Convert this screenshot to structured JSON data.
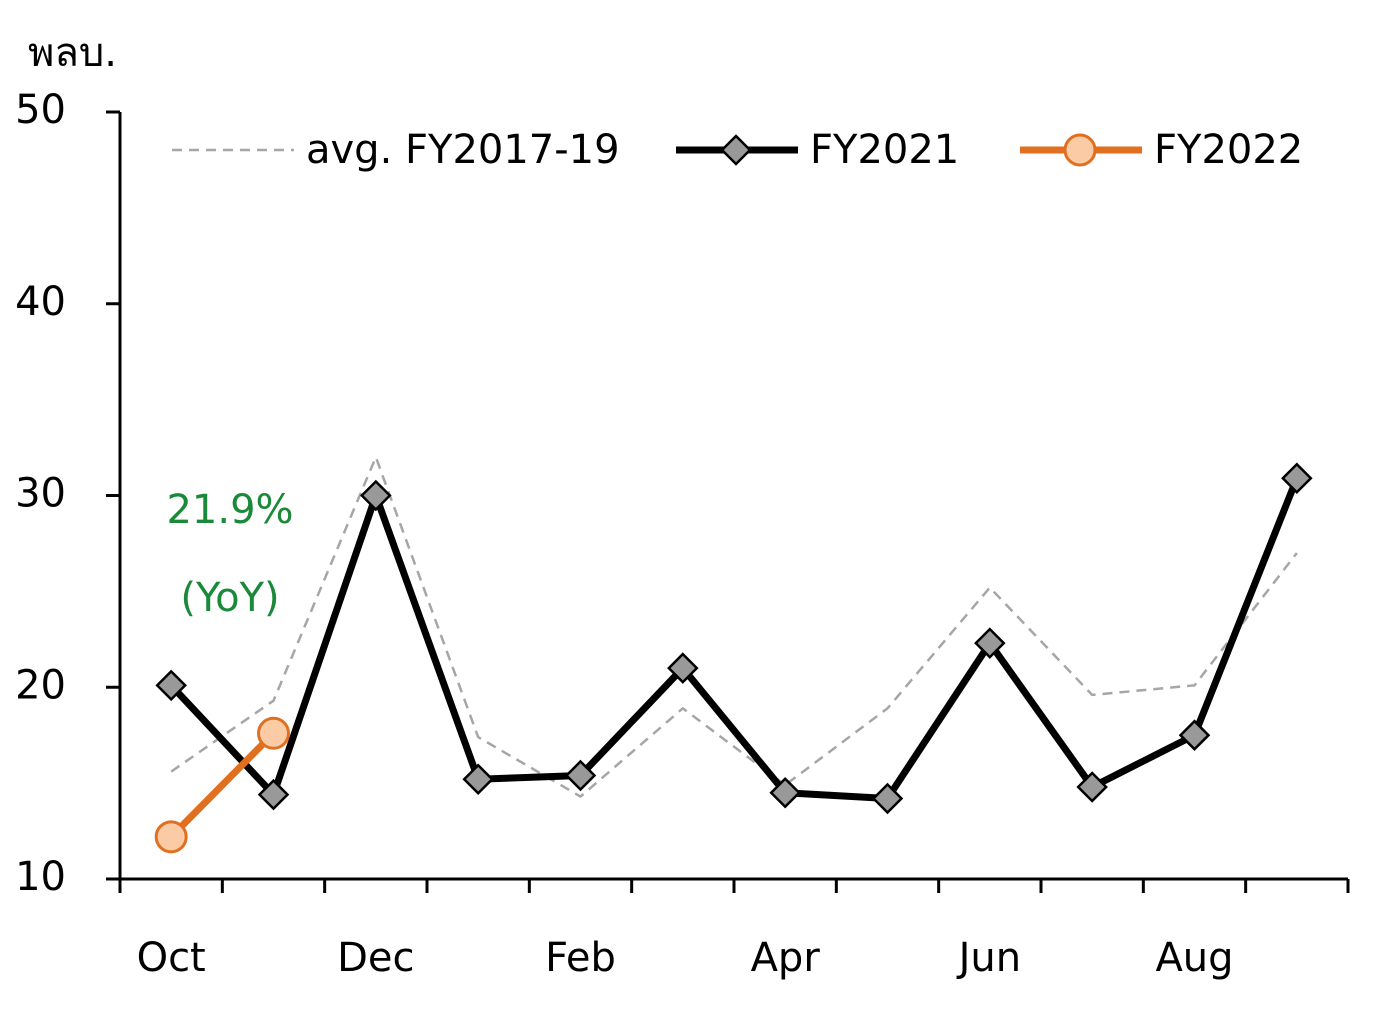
{
  "chart_data": {
    "type": "line",
    "y_label": "พลบ.",
    "categories": [
      "Oct",
      null,
      "Dec",
      null,
      "Feb",
      null,
      "Apr",
      null,
      "Jun",
      null,
      "Aug",
      null
    ],
    "series": [
      {
        "name": "avg. FY2017-19",
        "color": "#a6a6a6",
        "dash": true,
        "marker": "none",
        "values": [
          15.6,
          19.3,
          32.0,
          17.4,
          14.3,
          18.9,
          14.9,
          18.9,
          25.2,
          19.6,
          20.1,
          27.0
        ]
      },
      {
        "name": "FY2021",
        "color": "#000000",
        "marker": "diamond",
        "marker_color": "#999999",
        "values": [
          20.1,
          14.4,
          30.0,
          15.2,
          15.4,
          21.0,
          14.5,
          14.2,
          22.3,
          14.8,
          17.5,
          30.9
        ]
      },
      {
        "name": "FY2022",
        "color": "#e07020",
        "marker": "circle",
        "marker_color": "#fbcba6",
        "values": [
          12.2,
          17.6,
          null,
          null,
          null,
          null,
          null,
          null,
          null,
          null,
          null,
          null
        ]
      }
    ],
    "annotations": [
      "21.9%",
      "(YoY)"
    ],
    "annotation_color": "#1a8a3a",
    "ylim": [
      10,
      50
    ],
    "yticks": [
      10,
      20,
      30,
      40,
      50
    ],
    "legend": "top"
  }
}
